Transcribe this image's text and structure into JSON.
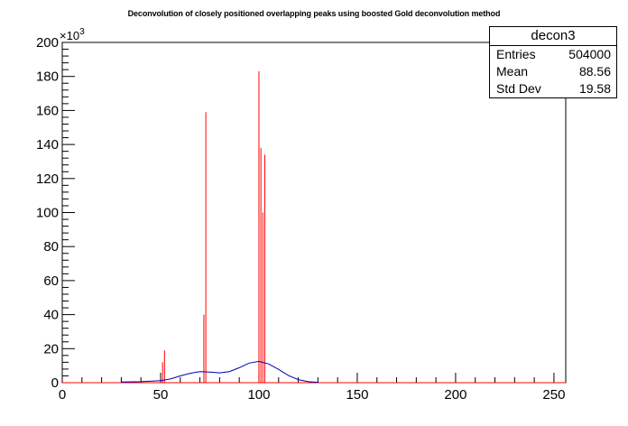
{
  "chart_data": {
    "type": "line",
    "title": "Deconvolution of closely positioned overlapping peaks using boosted Gold deconvolution method",
    "xlabel": "",
    "ylabel": "",
    "xlim": [
      0,
      256
    ],
    "ylim": [
      0,
      200000
    ],
    "y_multiplier_label": "×10",
    "y_multiplier_exp": "3",
    "x_ticks": [
      "0",
      "50",
      "100",
      "150",
      "200",
      "250"
    ],
    "y_ticks": [
      "0",
      "20",
      "40",
      "60",
      "80",
      "100",
      "120",
      "140",
      "160",
      "180",
      "200"
    ],
    "series": [
      {
        "color": "#ff0000",
        "style": "histogram",
        "x": [
          51,
          52,
          72,
          73,
          100,
          101,
          102,
          103
        ],
        "values": [
          12000,
          19000,
          40000,
          159000,
          183000,
          138000,
          100000,
          134000
        ]
      },
      {
        "color": "#0000aa",
        "style": "line",
        "x": [
          30,
          40,
          50,
          55,
          60,
          65,
          70,
          75,
          80,
          85,
          90,
          95,
          100,
          105,
          110,
          115,
          120,
          125,
          130
        ],
        "values": [
          400,
          600,
          1200,
          2200,
          4000,
          5500,
          6500,
          6200,
          5800,
          6500,
          8800,
          11500,
          12500,
          11000,
          7800,
          4200,
          1800,
          600,
          200
        ]
      }
    ]
  },
  "stats": {
    "name": "decon3",
    "rows": [
      {
        "key": "Entries",
        "value": "504000"
      },
      {
        "key": "Mean",
        "value": "88.56"
      },
      {
        "key": "Std Dev",
        "value": "19.58"
      }
    ]
  }
}
